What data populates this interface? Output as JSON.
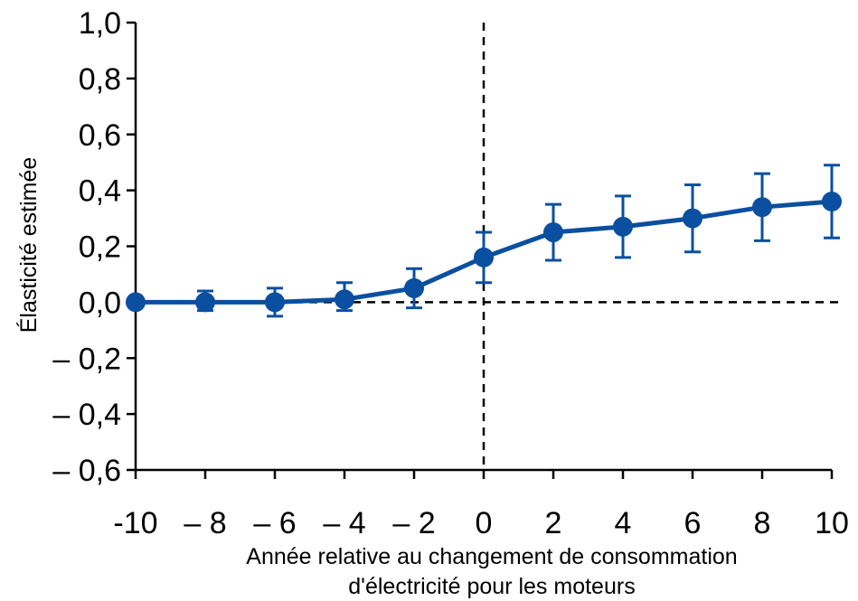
{
  "chart_data": {
    "type": "line",
    "title": "",
    "xlabel_line1": "Année relative au changement de consommation",
    "xlabel_line2": "d'électricité pour les moteurs",
    "ylabel": "Élasticité estimée",
    "xlim": [
      -10,
      10
    ],
    "ylim": [
      -0.6,
      1.0
    ],
    "x_ticks": [
      -10,
      -8,
      -6,
      -4,
      -2,
      0,
      2,
      4,
      6,
      8,
      10
    ],
    "x_tick_labels": [
      "-10",
      "– 8",
      "– 6",
      "– 4",
      "– 2",
      "0",
      "2",
      "4",
      "6",
      "8",
      "10"
    ],
    "y_ticks": [
      1.0,
      0.8,
      0.6,
      0.4,
      0.2,
      0.0,
      -0.2,
      -0.4,
      -0.6
    ],
    "y_tick_labels": [
      "1,0",
      "0,8",
      "0,6",
      "0,4",
      "0,2",
      "0,0",
      "– 0,2",
      "– 0,4",
      "– 0,6"
    ],
    "grid": false,
    "reference_lines": {
      "y": 0.0,
      "x": 0
    },
    "series": [
      {
        "x": [
          -10,
          -8,
          -6,
          -4,
          -2,
          0,
          2,
          4,
          6,
          8,
          10
        ],
        "y": [
          0.0,
          0.0,
          0.0,
          0.01,
          0.05,
          0.16,
          0.25,
          0.27,
          0.3,
          0.34,
          0.36
        ],
        "err_low": [
          0.0,
          -0.03,
          -0.05,
          -0.03,
          -0.02,
          0.07,
          0.15,
          0.16,
          0.18,
          0.22,
          0.23
        ],
        "err_high": [
          0.0,
          0.04,
          0.05,
          0.07,
          0.12,
          0.25,
          0.35,
          0.38,
          0.42,
          0.46,
          0.49
        ]
      }
    ],
    "color": "#0a4fa0"
  }
}
